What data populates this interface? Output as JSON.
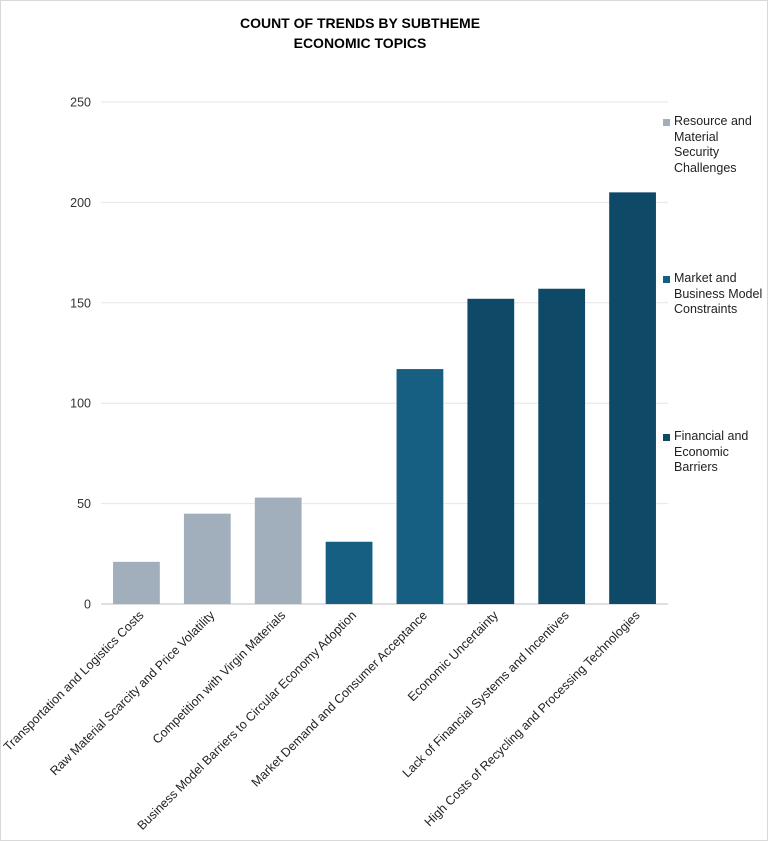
{
  "chart_data": {
    "type": "bar",
    "title": [
      "COUNT OF TRENDS BY SUBTHEME",
      "ECONOMIC TOPICS"
    ],
    "xlabel": "",
    "ylabel": "",
    "ylim": [
      0,
      250
    ],
    "yticks": [
      0,
      50,
      100,
      150,
      200,
      250
    ],
    "grid": true,
    "legend_position": "right",
    "categories": [
      "Transportation and Logistics Costs",
      "Raw Material Scarcity and Price Volatility",
      "Competition with Virgin Materials",
      "Business Model Barriers to Circular Economy Adoption",
      "Market Demand and Consumer Acceptance",
      "Economic Uncertainty",
      "Lack of Financial Systems and Incentives",
      "High Costs of Recycling and Processing Technologies"
    ],
    "values": [
      21,
      45,
      53,
      31,
      117,
      152,
      157,
      205
    ],
    "bar_groups": [
      0,
      0,
      0,
      1,
      1,
      2,
      2,
      2
    ],
    "series": [
      {
        "name": "Resource and Material Security Challenges",
        "color": "#a1afbc"
      },
      {
        "name": "Market and Business Model Constraints",
        "color": "#165f82"
      },
      {
        "name": "Financial and Economic Barriers",
        "color": "#0e4a67"
      }
    ]
  }
}
